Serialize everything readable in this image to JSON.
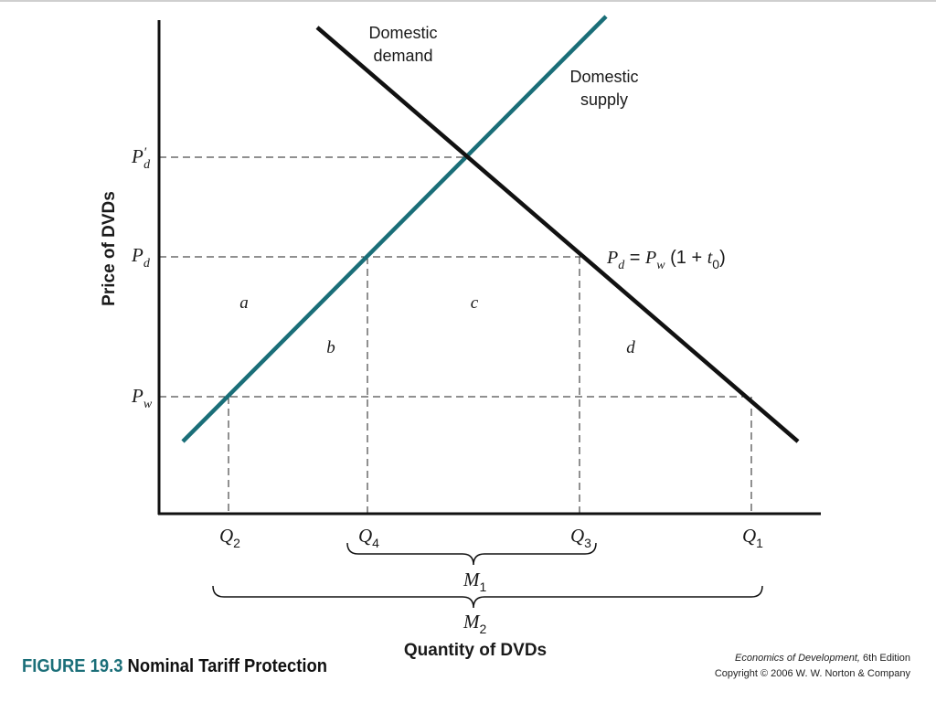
{
  "figure": {
    "number": "FIGURE 19.3",
    "title": "Nominal Tariff Protection"
  },
  "credit": {
    "book": "Economics of Development,",
    "edition": "6th Edition",
    "copyright": "Copyright © 2006 W. W. Norton & Company"
  },
  "axes": {
    "y_label": "Price of DVDs",
    "x_label": "Quantity of DVDs"
  },
  "curves": {
    "demand_line1": "Domestic",
    "demand_line2": "demand",
    "supply_line1": "Domestic",
    "supply_line2": "supply",
    "supply_color": "#1a6e78",
    "demand_color": "#111111"
  },
  "price_levels": {
    "pd_prime": {
      "base": "P",
      "prime": "′",
      "sub": "d"
    },
    "pd": {
      "base": "P",
      "sub": "d"
    },
    "pw": {
      "base": "P",
      "sub": "w"
    }
  },
  "tariff_equation": {
    "lhs_base": "P",
    "lhs_sub": "d",
    "eq": " = ",
    "rhs_base": "P",
    "rhs_sub": "w",
    "paren_open": " (1 + ",
    "t_base": "t",
    "t_sub": "0",
    "paren_close": ")"
  },
  "quantities": {
    "q2": {
      "base": "Q",
      "sub": "2"
    },
    "q4": {
      "base": "Q",
      "sub": "4"
    },
    "q3": {
      "base": "Q",
      "sub": "3"
    },
    "q1": {
      "base": "Q",
      "sub": "1"
    }
  },
  "imports": {
    "m1": {
      "base": "M",
      "sub": "1"
    },
    "m2": {
      "base": "M",
      "sub": "2"
    }
  },
  "areas": {
    "a": "a",
    "b": "b",
    "c": "c",
    "d": "d"
  }
}
